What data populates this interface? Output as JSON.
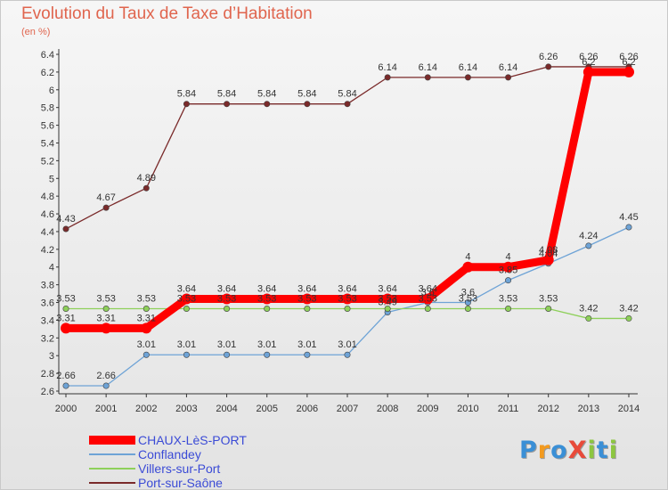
{
  "header": {
    "title": "Evolution du Taux de Taxe d’Habitation",
    "subtitle": "(en %)"
  },
  "logo": {
    "text": "ProXiti",
    "letters": [
      {
        "char": "P",
        "color": "#3a8fd6"
      },
      {
        "char": "r",
        "color": "#f39a1e"
      },
      {
        "char": "o",
        "color": "#3a8fd6"
      },
      {
        "char": "X",
        "color": "#e84a3a"
      },
      {
        "char": "i",
        "color": "#8cc63f"
      },
      {
        "char": "t",
        "color": "#3a8fd6"
      },
      {
        "char": "i",
        "color": "#8cc63f"
      }
    ]
  },
  "chart_data": {
    "type": "line",
    "title": "Evolution du Taux de Taxe d’Habitation",
    "subtitle": "(en %)",
    "xlabel": "",
    "ylabel": "",
    "x": [
      2000,
      2001,
      2002,
      2003,
      2004,
      2005,
      2006,
      2007,
      2008,
      2009,
      2010,
      2011,
      2012,
      2013,
      2014
    ],
    "ylim": [
      2.6,
      6.4
    ],
    "yticks": [
      "2.6",
      "2.8",
      "3",
      "3.2",
      "3.4",
      "3.6",
      "3.8",
      "4",
      "4.2",
      "4.4",
      "4.6",
      "4.8",
      "5",
      "5.2",
      "5.4",
      "5.6",
      "5.8",
      "6",
      "6.2",
      "6.4"
    ],
    "grid": false,
    "legend_position": "bottom-left",
    "series": [
      {
        "name": "CHAUX-LèS-PORT",
        "color": "#ff0000",
        "values": [
          3.31,
          3.31,
          3.31,
          3.64,
          3.64,
          3.64,
          3.64,
          3.64,
          3.64,
          3.64,
          4,
          4,
          4.08,
          6.2,
          6.2
        ],
        "labels": [
          "3.31",
          "3.31",
          "3.31",
          "3.64",
          "3.64",
          "3.64",
          "3.64",
          "3.64",
          "3.64",
          "3.64",
          "4",
          "4",
          "4.08",
          "6.2",
          "6.2"
        ]
      },
      {
        "name": "Conflandey",
        "color": "#6ea3d6",
        "values": [
          2.66,
          2.66,
          3.01,
          3.01,
          3.01,
          3.01,
          3.01,
          3.01,
          3.49,
          3.6,
          3.6,
          3.85,
          4.04,
          4.24,
          4.45
        ],
        "labels": [
          "2.66",
          "2.66",
          "3.01",
          "3.01",
          "3.01",
          "3.01",
          "3.01",
          "3.01",
          "3.49",
          "3.6",
          "3.6",
          "3.85",
          "4.04",
          "4.24",
          "4.45"
        ]
      },
      {
        "name": "Villers-sur-Port",
        "color": "#8ed05a",
        "values": [
          3.53,
          3.53,
          3.53,
          3.53,
          3.53,
          3.53,
          3.53,
          3.53,
          3.53,
          3.53,
          3.53,
          3.53,
          3.53,
          3.42,
          3.42
        ],
        "labels": [
          "3.53",
          "3.53",
          "3.53",
          "3.53",
          "3.53",
          "3.53",
          "3.53",
          "3.53",
          "3.53",
          "3.53",
          "3.53",
          "3.53",
          "3.53",
          "3.42",
          "3.42"
        ]
      },
      {
        "name": "Port-sur-Saône",
        "color": "#7a2a2a",
        "values": [
          4.43,
          4.67,
          4.89,
          5.84,
          5.84,
          5.84,
          5.84,
          5.84,
          6.14,
          6.14,
          6.14,
          6.14,
          6.26,
          6.26,
          6.26
        ],
        "labels": [
          "4.43",
          "4.67",
          "4.89",
          "5.84",
          "5.84",
          "5.84",
          "5.84",
          "5.84",
          "6.14",
          "6.14",
          "6.14",
          "6.14",
          "6.26",
          "6.26",
          "6.26"
        ]
      }
    ]
  }
}
